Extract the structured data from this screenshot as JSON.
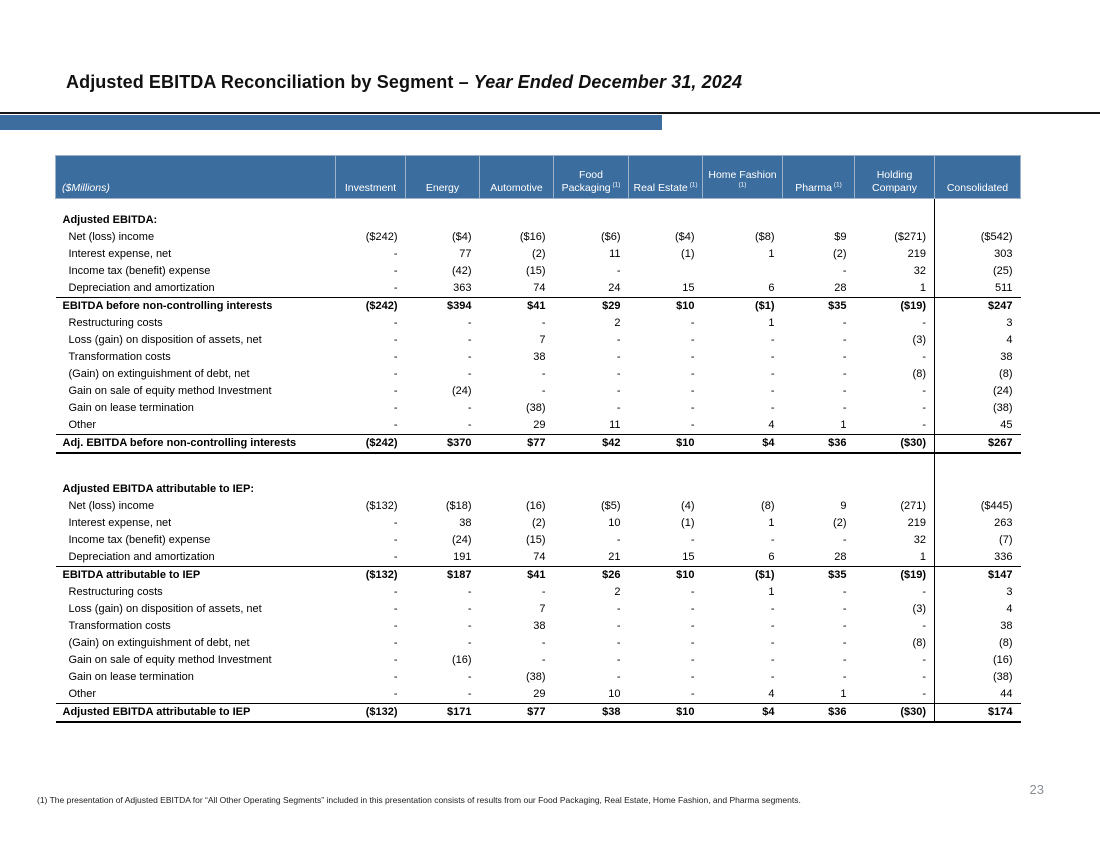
{
  "title": {
    "main": "Adjusted EBITDA Reconciliation by Segment – ",
    "period": "Year Ended December 31, 2024"
  },
  "page_number": "23",
  "footnote": "(1) The presentation of Adjusted EBITDA for “All Other Operating Segments” included in this presentation consists of results from our Food Packaging, Real Estate, Home Fashion, and Pharma segments.",
  "colors": {
    "header_blue": "#3C6D9F",
    "accent_bar_blue": "#3D6D9E"
  },
  "table": {
    "unit_label": "($Millions)",
    "columns": [
      {
        "label": "Investment",
        "sup": ""
      },
      {
        "label": "Energy",
        "sup": ""
      },
      {
        "label": "Automotive",
        "sup": ""
      },
      {
        "label": "Food Packaging",
        "sup": "(1)"
      },
      {
        "label": "Real Estate",
        "sup": "(1)"
      },
      {
        "label": "Home Fashion",
        "sup": "(1)"
      },
      {
        "label": "Pharma",
        "sup": "(1)"
      },
      {
        "label": "Holding Company",
        "sup": ""
      },
      {
        "label": "Consolidated",
        "sup": ""
      }
    ],
    "rows": [
      {
        "style": "spacer_sm",
        "label": "",
        "values": [
          "",
          "",
          "",
          "",
          "",
          "",
          "",
          "",
          ""
        ]
      },
      {
        "style": "section",
        "label": "Adjusted EBITDA:",
        "values": [
          "",
          "",
          "",
          "",
          "",
          "",
          "",
          "",
          ""
        ]
      },
      {
        "style": "data",
        "label": "Net (loss) income",
        "values": [
          "($242)",
          "($4)",
          "($16)",
          "($6)",
          "($4)",
          "($8)",
          "$9",
          "($271)",
          "($542)"
        ]
      },
      {
        "style": "data",
        "label": "Interest expense, net",
        "values": [
          "-",
          "77",
          "(2)",
          "11",
          "(1)",
          "1",
          "(2)",
          "219",
          "303"
        ]
      },
      {
        "style": "data",
        "label": "Income tax (benefit) expense",
        "values": [
          "-",
          "(42)",
          "(15)",
          "-",
          "",
          "",
          "-",
          "32",
          "(25)"
        ]
      },
      {
        "style": "data underline",
        "label": "Depreciation and amortization",
        "values": [
          "-",
          "363",
          "74",
          "24",
          "15",
          "6",
          "28",
          "1",
          "511"
        ]
      },
      {
        "style": "total",
        "label": "EBITDA before non-controlling interests",
        "values": [
          "($242)",
          "$394",
          "$41",
          "$29",
          "$10",
          "($1)",
          "$35",
          "($19)",
          "$247"
        ]
      },
      {
        "style": "data",
        "label": "Restructuring costs",
        "values": [
          "-",
          "-",
          "-",
          "2",
          "-",
          "1",
          "-",
          "-",
          "3"
        ]
      },
      {
        "style": "data",
        "label": "Loss (gain) on disposition of assets, net",
        "values": [
          "-",
          "-",
          "7",
          "-",
          "-",
          "-",
          "-",
          "(3)",
          "4"
        ]
      },
      {
        "style": "data",
        "label": "Transformation costs",
        "values": [
          "-",
          "-",
          "38",
          "-",
          "-",
          "-",
          "-",
          "-",
          "38"
        ]
      },
      {
        "style": "data",
        "label": "(Gain) on extinguishment of debt, net",
        "values": [
          "-",
          "-",
          "-",
          "-",
          "-",
          "-",
          "-",
          "(8)",
          "(8)"
        ]
      },
      {
        "style": "data",
        "label": "Gain on sale of equity method Investment",
        "values": [
          "-",
          "(24)",
          "-",
          "-",
          "-",
          "-",
          "-",
          "-",
          "(24)"
        ]
      },
      {
        "style": "data",
        "label": "Gain on lease termination",
        "values": [
          "-",
          "-",
          "(38)",
          "-",
          "-",
          "-",
          "-",
          "-",
          "(38)"
        ]
      },
      {
        "style": "data underline",
        "label": "Other",
        "values": [
          "-",
          "-",
          "29",
          "11",
          "-",
          "4",
          "1",
          "-",
          "45"
        ]
      },
      {
        "style": "end",
        "label": "Adj. EBITDA before non-controlling interests",
        "values": [
          "($242)",
          "$370",
          "$77",
          "$42",
          "$10",
          "$4",
          "$36",
          "($30)",
          "$267"
        ]
      },
      {
        "style": "spacer_lg",
        "label": "",
        "values": [
          "",
          "",
          "",
          "",
          "",
          "",
          "",
          "",
          ""
        ]
      },
      {
        "style": "section",
        "label": "Adjusted EBITDA attributable to IEP:",
        "values": [
          "",
          "",
          "",
          "",
          "",
          "",
          "",
          "",
          ""
        ]
      },
      {
        "style": "data",
        "label": "Net (loss) income",
        "values": [
          "($132)",
          "($18)",
          "(16)",
          "($5)",
          "(4)",
          "(8)",
          "9",
          "(271)",
          "($445)"
        ]
      },
      {
        "style": "data",
        "label": "Interest expense, net",
        "values": [
          "-",
          "38",
          "(2)",
          "10",
          "(1)",
          "1",
          "(2)",
          "219",
          "263"
        ]
      },
      {
        "style": "data",
        "label": "Income tax (benefit) expense",
        "values": [
          "-",
          "(24)",
          "(15)",
          "-",
          "-",
          "-",
          "-",
          "32",
          "(7)"
        ]
      },
      {
        "style": "data underline",
        "label": "Depreciation and amortization",
        "values": [
          "-",
          "191",
          "74",
          "21",
          "15",
          "6",
          "28",
          "1",
          "336"
        ]
      },
      {
        "style": "total",
        "label": "EBITDA attributable to IEP",
        "values": [
          "($132)",
          "$187",
          "$41",
          "$26",
          "$10",
          "($1)",
          "$35",
          "($19)",
          "$147"
        ]
      },
      {
        "style": "data",
        "label": "Restructuring costs",
        "values": [
          "-",
          "-",
          "-",
          "2",
          "-",
          "1",
          "-",
          "-",
          "3"
        ]
      },
      {
        "style": "data",
        "label": "Loss (gain) on disposition of assets, net",
        "values": [
          "-",
          "-",
          "7",
          "-",
          "-",
          "-",
          "-",
          "(3)",
          "4"
        ]
      },
      {
        "style": "data",
        "label": "Transformation costs",
        "values": [
          "-",
          "-",
          "38",
          "-",
          "-",
          "-",
          "-",
          "-",
          "38"
        ]
      },
      {
        "style": "data",
        "label": "(Gain) on extinguishment of debt, net",
        "values": [
          "-",
          "-",
          "-",
          "-",
          "-",
          "-",
          "-",
          "(8)",
          "(8)"
        ]
      },
      {
        "style": "data",
        "label": "Gain on sale of equity method Investment",
        "values": [
          "-",
          "(16)",
          "-",
          "-",
          "-",
          "-",
          "-",
          "-",
          "(16)"
        ]
      },
      {
        "style": "data",
        "label": "Gain on lease termination",
        "values": [
          "-",
          "-",
          "(38)",
          "-",
          "-",
          "-",
          "-",
          "-",
          "(38)"
        ]
      },
      {
        "style": "data underline",
        "label": "Other",
        "values": [
          "-",
          "-",
          "29",
          "10",
          "-",
          "4",
          "1",
          "-",
          "44"
        ]
      },
      {
        "style": "end",
        "label": "Adjusted EBITDA attributable to IEP",
        "values": [
          "($132)",
          "$171",
          "$77",
          "$38",
          "$10",
          "$4",
          "$36",
          "($30)",
          "$174"
        ]
      }
    ]
  }
}
